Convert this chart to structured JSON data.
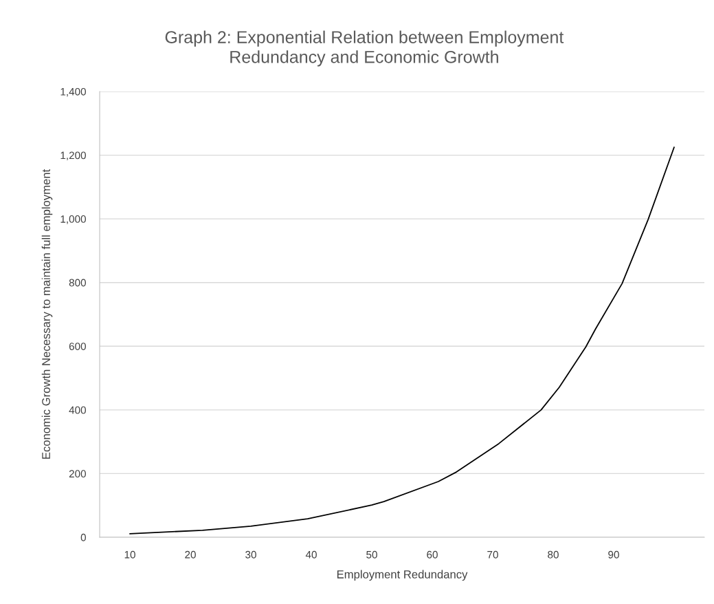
{
  "chart_data": {
    "type": "line",
    "title": "Graph 2: Exponential Relation between Employment\nRedundancy and Economic Growth",
    "xlabel": "Employment Redundancy",
    "ylabel": "Economic Growth Necessary to maintain full employment",
    "series": [
      {
        "color": "#000000",
        "x": [
          10,
          22,
          30,
          39.4,
          50,
          52,
          61,
          64,
          71,
          78,
          81,
          85.4,
          87,
          91.4,
          95.7,
          100
        ],
        "values": [
          11,
          22,
          35,
          58,
          101,
          112,
          175,
          205,
          294,
          400,
          471,
          598,
          654,
          797,
          998,
          1225
        ]
      }
    ],
    "xlim": [
      5,
      105
    ],
    "xticks": [
      10,
      20,
      30,
      40,
      50,
      60,
      70,
      80,
      90
    ],
    "ylim": [
      0,
      1400
    ],
    "yticks": [
      {
        "value": 0,
        "label": "0"
      },
      {
        "value": 200,
        "label": "200"
      },
      {
        "value": 400,
        "label": "400"
      },
      {
        "value": 600,
        "label": "600"
      },
      {
        "value": 800,
        "label": "800"
      },
      {
        "value": 1000,
        "label": "1,000"
      },
      {
        "value": 1200,
        "label": "1,200"
      },
      {
        "value": 1400,
        "label": "1,400"
      }
    ],
    "grid": "y",
    "line_style": "solid",
    "marker": "none"
  }
}
